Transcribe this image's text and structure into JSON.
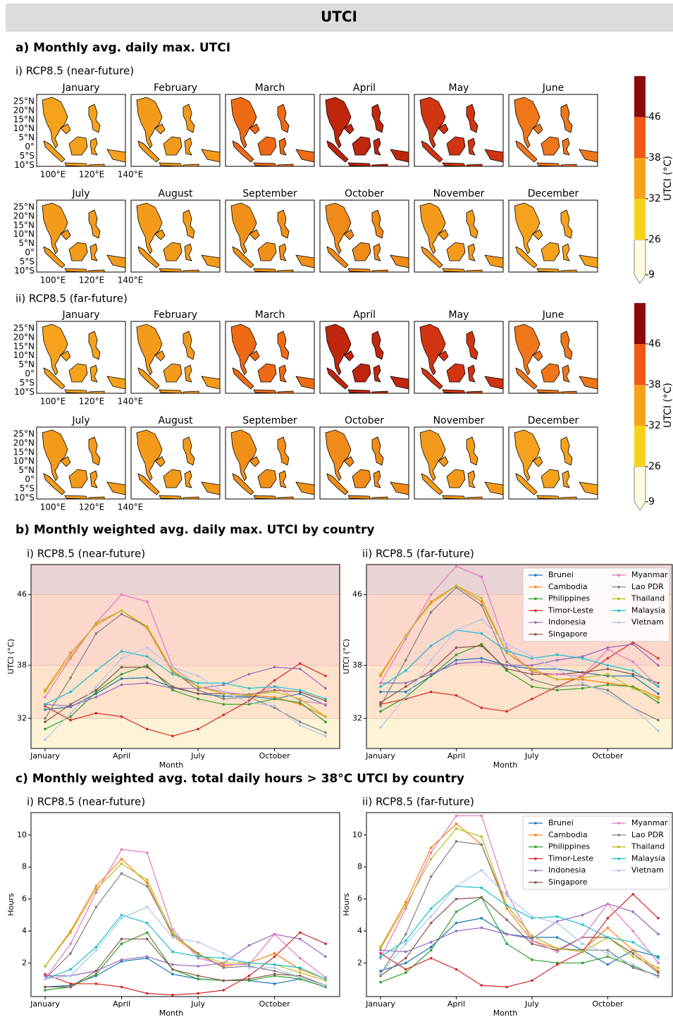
{
  "header": {
    "title": "UTCI"
  },
  "maps": {
    "title": "a) Monthly avg. daily max. UTCI",
    "panels": [
      "i) RCP8.5 (near-future)",
      "ii) RCP8.5 (far-future)"
    ],
    "months": [
      "January",
      "February",
      "March",
      "April",
      "May",
      "June",
      "July",
      "August",
      "September",
      "October",
      "November",
      "December"
    ],
    "lat_labels": [
      "25°N",
      "20°N",
      "15°N",
      "10°N",
      "5°N",
      "0°",
      "5°S",
      "10°S"
    ],
    "lon_labels": [
      "100°E",
      "120°E",
      "140°E"
    ],
    "colorbar": {
      "label": "UTCI (°C)",
      "ticks": [
        9,
        26,
        32,
        38,
        46
      ],
      "colors": [
        "#fffbe0",
        "#f8d21a",
        "#f6a21c",
        "#ee5a12",
        "#8b0a0a"
      ]
    }
  },
  "sections": [
    "b) Monthly weighted avg. daily max. UTCI by country",
    "c) Monthly weighted avg. total daily hours > 38°C UTCI by country"
  ],
  "chart_data": [
    {
      "type": "line",
      "title": "i) RCP8.5 (near-future)",
      "xlabel": "Month",
      "ylabel": "UTCI (°C)",
      "categories": [
        "January",
        null,
        null,
        "April",
        null,
        null,
        "July",
        null,
        null,
        "October",
        null,
        null
      ],
      "ylim": [
        28.6,
        49.4
      ],
      "yticks": [
        32,
        38,
        46
      ],
      "band_colors": [
        "#fdf3d6",
        "#fde3cb",
        "#fbd7cc",
        "#e9d3d4"
      ],
      "legend": false,
      "series": [
        {
          "name": "Brunei",
          "color": "#1f77b4",
          "values": [
            33.0,
            33.3,
            34.8,
            36.5,
            36.6,
            35.5,
            34.8,
            34.5,
            34.5,
            34.2,
            34.8,
            33.5
          ]
        },
        {
          "name": "Cambodia",
          "color": "#ff7f0e",
          "values": [
            35.2,
            39.4,
            42.6,
            44.2,
            42.2,
            37.2,
            35.6,
            34.8,
            34.6,
            34.4,
            33.6,
            32.2
          ]
        },
        {
          "name": "Philippines",
          "color": "#2ca02c",
          "values": [
            30.8,
            32.2,
            35.0,
            37.0,
            38.0,
            35.2,
            34.2,
            33.6,
            33.6,
            34.2,
            33.8,
            31.6
          ]
        },
        {
          "name": "Timor-Leste",
          "color": "#d62728",
          "values": [
            33.4,
            31.8,
            32.6,
            32.2,
            30.8,
            30.0,
            30.8,
            32.4,
            34.0,
            36.3,
            38.2,
            36.8
          ]
        },
        {
          "name": "Indonesia",
          "color": "#9467bd",
          "values": [
            33.6,
            33.4,
            34.4,
            35.8,
            36.0,
            35.4,
            35.4,
            35.8,
            37.0,
            37.8,
            37.6,
            35.4
          ]
        },
        {
          "name": "Singapore",
          "color": "#8c564b",
          "values": [
            31.6,
            33.6,
            35.2,
            37.8,
            37.8,
            35.6,
            34.8,
            34.8,
            34.7,
            35.2,
            35.0,
            34.0
          ]
        },
        {
          "name": "Myanmar",
          "color": "#e377c2",
          "values": [
            34.4,
            38.8,
            42.8,
            46.0,
            45.2,
            37.8,
            35.6,
            35.0,
            34.6,
            35.6,
            34.0,
            33.6
          ]
        },
        {
          "name": "Lao PDR",
          "color": "#7f7f7f",
          "values": [
            32.0,
            36.6,
            41.6,
            43.8,
            42.4,
            37.4,
            35.2,
            34.2,
            34.4,
            33.2,
            31.6,
            30.4
          ]
        },
        {
          "name": "Thailand",
          "color": "#bcbd22",
          "values": [
            35.0,
            39.0,
            42.8,
            44.2,
            42.4,
            37.4,
            35.6,
            34.8,
            34.6,
            35.0,
            34.2,
            32.2
          ]
        },
        {
          "name": "Malaysia",
          "color": "#17becf",
          "values": [
            33.6,
            35.0,
            37.4,
            39.6,
            39.0,
            37.0,
            36.0,
            36.0,
            35.4,
            35.6,
            35.2,
            34.2
          ]
        },
        {
          "name": "Vietnam",
          "color": "#aec7e8",
          "values": [
            29.6,
            32.6,
            35.6,
            38.8,
            40.0,
            37.8,
            36.8,
            35.0,
            33.8,
            33.4,
            31.2,
            30.0
          ]
        }
      ]
    },
    {
      "type": "line",
      "title": "ii) RCP8.5 (far-future)",
      "xlabel": "Month",
      "ylabel": "UTCI (°C)",
      "categories": [
        "January",
        null,
        null,
        "April",
        null,
        null,
        "July",
        null,
        null,
        "October",
        null,
        null
      ],
      "ylim": [
        28.6,
        49.4
      ],
      "yticks": [
        32,
        38,
        46
      ],
      "band_colors": [
        "#fdf3d6",
        "#fde3cb",
        "#fbd7cc",
        "#e9d3d4"
      ],
      "legend": "upper right",
      "series": [
        {
          "name": "Brunei",
          "color": "#1f77b4",
          "values": [
            35.0,
            35.0,
            36.8,
            38.6,
            38.8,
            38.0,
            37.6,
            37.6,
            37.2,
            36.8,
            36.8,
            34.8
          ]
        },
        {
          "name": "Cambodia",
          "color": "#ff7f0e",
          "values": [
            36.8,
            41.4,
            45.2,
            47.0,
            45.2,
            39.4,
            37.6,
            36.4,
            36.4,
            36.0,
            35.6,
            34.4
          ]
        },
        {
          "name": "Philippines",
          "color": "#2ca02c",
          "values": [
            32.8,
            34.4,
            36.8,
            39.2,
            40.4,
            37.4,
            35.6,
            35.2,
            35.4,
            35.8,
            35.6,
            33.8
          ]
        },
        {
          "name": "Timor-Leste",
          "color": "#d62728",
          "values": [
            33.6,
            34.2,
            35.0,
            34.6,
            33.2,
            32.8,
            34.2,
            35.6,
            36.8,
            38.8,
            40.6,
            38.8
          ]
        },
        {
          "name": "Indonesia",
          "color": "#9467bd",
          "values": [
            36.0,
            36.0,
            37.0,
            38.2,
            38.4,
            38.0,
            38.0,
            38.6,
            39.0,
            40.0,
            40.4,
            38.0
          ]
        },
        {
          "name": "Singapore",
          "color": "#8c564b",
          "values": [
            33.8,
            35.6,
            37.4,
            40.0,
            40.2,
            37.6,
            37.0,
            37.0,
            37.2,
            37.6,
            37.0,
            36.0
          ]
        },
        {
          "name": "Myanmar",
          "color": "#e377c2",
          "values": [
            36.0,
            41.0,
            46.0,
            49.2,
            48.0,
            40.0,
            37.2,
            37.0,
            36.8,
            39.8,
            38.4,
            35.6
          ]
        },
        {
          "name": "Lao PDR",
          "color": "#7f7f7f",
          "values": [
            33.4,
            38.6,
            44.0,
            46.8,
            44.8,
            38.4,
            36.4,
            35.6,
            35.8,
            35.2,
            33.2,
            31.8
          ]
        },
        {
          "name": "Thailand",
          "color": "#bcbd22",
          "values": [
            37.0,
            41.4,
            45.0,
            47.0,
            45.6,
            39.4,
            37.4,
            36.4,
            36.6,
            37.0,
            35.4,
            34.2
          ]
        },
        {
          "name": "Malaysia",
          "color": "#17becf",
          "values": [
            35.6,
            37.4,
            40.2,
            42.0,
            41.6,
            39.6,
            38.8,
            39.2,
            38.8,
            38.0,
            37.4,
            35.6
          ]
        },
        {
          "name": "Vietnam",
          "color": "#aec7e8",
          "values": [
            31.0,
            34.4,
            38.6,
            42.0,
            43.2,
            40.4,
            39.0,
            37.6,
            36.0,
            34.8,
            33.2,
            30.6
          ]
        }
      ]
    },
    {
      "type": "line",
      "title": "i) RCP8.5 (near-future)",
      "xlabel": "Month",
      "ylabel": "Hours",
      "categories": [
        "January",
        null,
        null,
        "April",
        null,
        null,
        "July",
        null,
        null,
        "October",
        null,
        null
      ],
      "ylim": [
        -0.1,
        11.4
      ],
      "yticks": [
        2,
        4,
        6,
        8,
        10
      ],
      "legend": false,
      "series": [
        {
          "name": "Brunei",
          "color": "#1f77b4",
          "values": [
            0.5,
            0.6,
            1.2,
            2.1,
            2.3,
            1.3,
            1.0,
            0.9,
            0.9,
            0.7,
            1.0,
            0.5
          ]
        },
        {
          "name": "Cambodia",
          "color": "#ff7f0e",
          "values": [
            1.8,
            4.0,
            6.8,
            8.5,
            7.0,
            3.7,
            2.5,
            1.8,
            2.0,
            2.6,
            1.6,
            1.0
          ]
        },
        {
          "name": "Philippines",
          "color": "#2ca02c",
          "values": [
            0.3,
            0.5,
            1.3,
            3.2,
            3.9,
            1.6,
            1.0,
            0.9,
            0.9,
            1.2,
            1.0,
            0.5
          ]
        },
        {
          "name": "Timor-Leste",
          "color": "#d62728",
          "values": [
            1.3,
            0.7,
            0.7,
            0.5,
            0.1,
            0.0,
            0.1,
            0.3,
            1.2,
            2.4,
            3.9,
            3.2
          ]
        },
        {
          "name": "Indonesia",
          "color": "#9467bd",
          "values": [
            1.2,
            1.2,
            1.5,
            2.2,
            2.4,
            1.9,
            1.8,
            2.0,
            3.1,
            3.8,
            3.5,
            2.4
          ]
        },
        {
          "name": "Singapore",
          "color": "#8c564b",
          "values": [
            0.5,
            0.5,
            1.5,
            3.5,
            3.5,
            1.6,
            1.2,
            0.9,
            1.0,
            1.3,
            1.2,
            0.6
          ]
        },
        {
          "name": "Myanmar",
          "color": "#e377c2",
          "values": [
            1.0,
            3.2,
            6.4,
            9.1,
            8.9,
            4.1,
            2.3,
            1.9,
            1.9,
            3.8,
            2.3,
            1.1
          ]
        },
        {
          "name": "Lao PDR",
          "color": "#7f7f7f",
          "values": [
            1.0,
            2.6,
            5.5,
            7.6,
            6.8,
            3.8,
            2.6,
            1.7,
            1.8,
            1.5,
            1.1,
            0.6
          ]
        },
        {
          "name": "Thailand",
          "color": "#bcbd22",
          "values": [
            1.8,
            3.9,
            6.6,
            8.2,
            7.2,
            3.9,
            2.5,
            2.0,
            2.0,
            1.9,
            1.4,
            0.9
          ]
        },
        {
          "name": "Malaysia",
          "color": "#17becf",
          "values": [
            1.0,
            1.6,
            3.0,
            5.0,
            4.5,
            2.7,
            2.4,
            2.3,
            2.0,
            1.9,
            1.7,
            1.0
          ]
        },
        {
          "name": "Vietnam",
          "color": "#aec7e8",
          "values": [
            1.0,
            1.2,
            2.8,
            4.8,
            5.5,
            3.6,
            3.3,
            2.6,
            1.7,
            1.7,
            1.1,
            0.6
          ]
        }
      ]
    },
    {
      "type": "line",
      "title": "ii) RCP8.5 (far-future)",
      "xlabel": "Month",
      "ylabel": "Hours",
      "categories": [
        "January",
        null,
        null,
        "April",
        null,
        null,
        "July",
        null,
        null,
        "October",
        null,
        null
      ],
      "ylim": [
        -0.1,
        11.4
      ],
      "yticks": [
        2,
        4,
        6,
        8,
        10
      ],
      "legend": "upper right",
      "series": [
        {
          "name": "Brunei",
          "color": "#1f77b4",
          "values": [
            1.5,
            2.0,
            3.0,
            4.5,
            4.8,
            3.8,
            3.6,
            3.6,
            2.8,
            1.9,
            2.8,
            2.4
          ]
        },
        {
          "name": "Cambodia",
          "color": "#ff7f0e",
          "values": [
            3.0,
            5.8,
            9.2,
            10.7,
            9.4,
            5.4,
            3.4,
            2.9,
            2.8,
            4.2,
            2.8,
            1.5
          ]
        },
        {
          "name": "Philippines",
          "color": "#2ca02c",
          "values": [
            0.8,
            1.4,
            2.8,
            5.2,
            6.1,
            3.2,
            2.2,
            2.0,
            2.0,
            2.4,
            1.8,
            1.2
          ]
        },
        {
          "name": "Timor-Leste",
          "color": "#d62728",
          "values": [
            2.6,
            1.6,
            2.3,
            1.6,
            0.6,
            0.5,
            0.9,
            1.9,
            2.7,
            4.8,
            6.3,
            4.8
          ]
        },
        {
          "name": "Indonesia",
          "color": "#9467bd",
          "values": [
            2.8,
            2.7,
            3.3,
            4.0,
            4.2,
            3.8,
            3.5,
            4.6,
            5.0,
            5.7,
            5.2,
            3.8
          ]
        },
        {
          "name": "Singapore",
          "color": "#8c564b",
          "values": [
            1.2,
            2.3,
            4.5,
            6.0,
            6.1,
            4.7,
            3.2,
            2.8,
            3.6,
            3.6,
            2.6,
            1.4
          ]
        },
        {
          "name": "Myanmar",
          "color": "#e377c2",
          "values": [
            2.3,
            5.4,
            8.9,
            11.2,
            11.2,
            6.4,
            3.4,
            2.7,
            3.6,
            5.7,
            4.0,
            2.0
          ]
        },
        {
          "name": "Lao PDR",
          "color": "#7f7f7f",
          "values": [
            1.3,
            3.8,
            7.4,
            9.6,
            9.4,
            5.6,
            3.7,
            2.9,
            2.8,
            2.8,
            1.7,
            1.2
          ]
        },
        {
          "name": "Thailand",
          "color": "#bcbd22",
          "values": [
            2.9,
            5.6,
            8.5,
            10.4,
            9.9,
            5.6,
            3.7,
            2.9,
            2.7,
            3.6,
            2.4,
            1.7
          ]
        },
        {
          "name": "Malaysia",
          "color": "#17becf",
          "values": [
            2.4,
            3.4,
            5.4,
            6.8,
            6.7,
            5.6,
            4.8,
            4.9,
            4.4,
            3.6,
            3.3,
            2.3
          ]
        },
        {
          "name": "Vietnam",
          "color": "#aec7e8",
          "values": [
            1.3,
            3.2,
            4.9,
            6.8,
            7.8,
            6.2,
            4.9,
            4.5,
            3.2,
            2.6,
            1.9,
            1.1
          ]
        }
      ]
    }
  ]
}
